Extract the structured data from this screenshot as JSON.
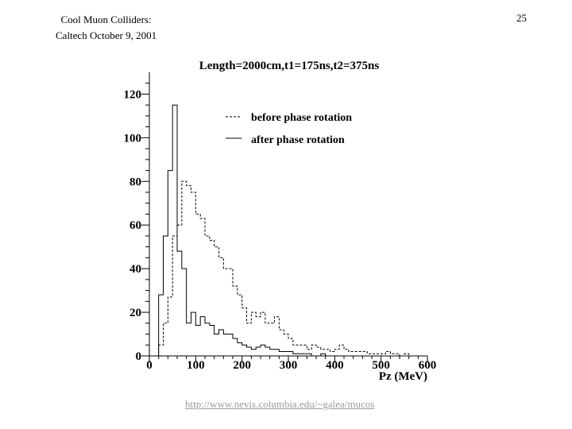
{
  "slide": {
    "header_line1": "Cool Muon Colliders:",
    "header_line2": "Caltech October 9, 2001",
    "page_number": "25",
    "footer_link": "http://www.nevis.columbia.edu/~galea/mucos"
  },
  "chart_data": {
    "type": "histogram-step",
    "title": "Length=2000cm,t1=175ns,t2=375ns",
    "xlabel": "Pz (MeV)",
    "ylabel": "",
    "xlim": [
      0,
      600
    ],
    "ylim": [
      0,
      130
    ],
    "xticks": [
      0,
      100,
      200,
      300,
      400,
      500,
      600
    ],
    "yticks": [
      0,
      20,
      40,
      60,
      80,
      100,
      120
    ],
    "bin_width": 10,
    "grid": false,
    "legend_position": "top-right",
    "series": [
      {
        "name": "before phase rotation",
        "style": "dashed",
        "values": [
          0,
          0,
          5,
          15,
          27,
          55,
          60,
          80,
          78,
          75,
          65,
          63,
          55,
          53,
          50,
          45,
          40,
          40,
          32,
          28,
          22,
          15,
          20,
          18,
          20,
          15,
          15,
          18,
          12,
          10,
          8,
          5,
          5,
          5,
          3,
          5,
          4,
          3,
          3,
          2,
          3,
          5,
          3,
          2,
          2,
          2,
          2,
          1,
          1,
          1,
          1,
          2,
          1,
          1,
          0,
          1,
          0,
          0,
          0,
          0
        ]
      },
      {
        "name": "after phase rotation",
        "style": "solid",
        "values": [
          0,
          0,
          28,
          55,
          85,
          115,
          48,
          40,
          15,
          20,
          14,
          18,
          15,
          14,
          10,
          12,
          10,
          10,
          8,
          6,
          5,
          4,
          3,
          4,
          5,
          4,
          3,
          3,
          2,
          2,
          2,
          1,
          1,
          1,
          1,
          0,
          0,
          1,
          0,
          0,
          0,
          0,
          0,
          0,
          0,
          0,
          0,
          0,
          0,
          0,
          0,
          0,
          0,
          0,
          0,
          0,
          0,
          0,
          0,
          0
        ]
      }
    ]
  }
}
